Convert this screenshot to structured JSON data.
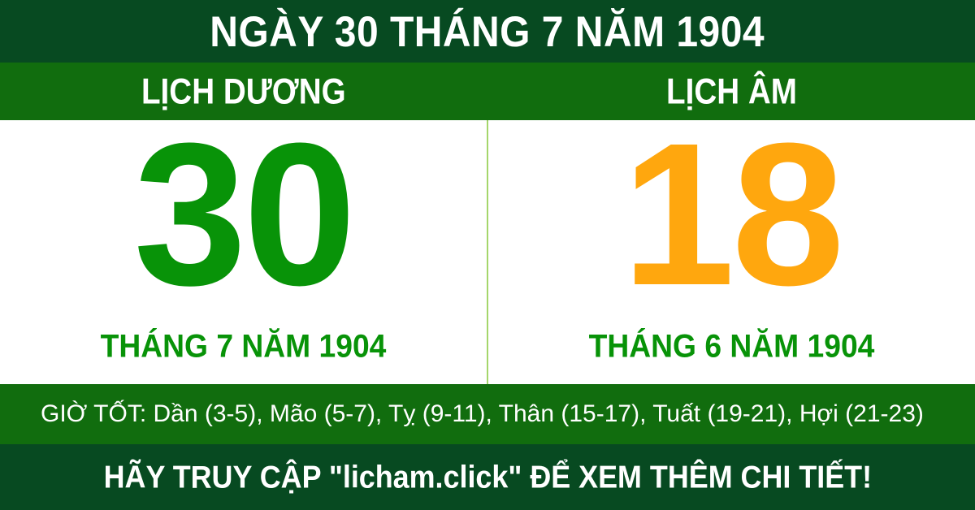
{
  "header": {
    "title": "NGÀY 30 THÁNG 7 NĂM 1904"
  },
  "calendar_labels": {
    "solar": "LỊCH DƯƠNG",
    "lunar": "LỊCH ÂM"
  },
  "solar": {
    "day": "30",
    "month_year": "THÁNG 7 NĂM 1904"
  },
  "lunar": {
    "day": "18",
    "month_year": "THÁNG 6 NĂM 1904"
  },
  "good_hours": {
    "text": "GIỜ TỐT: Dần (3-5), Mão (5-7), Tỵ (9-11), Thân (15-17), Tuất (19-21), Hợi (21-23)"
  },
  "footer": {
    "text": "HÃY TRUY CẬP \"licham.click\" ĐỂ XEM THÊM CHI TIẾT!"
  },
  "colors": {
    "dark_green": "#074A21",
    "medium_green": "#116D0E",
    "day_number_green": "#089308",
    "day_number_orange": "#FFA70E",
    "divider_light_green": "#A5D66B",
    "text_white": "#FFFFFF"
  }
}
